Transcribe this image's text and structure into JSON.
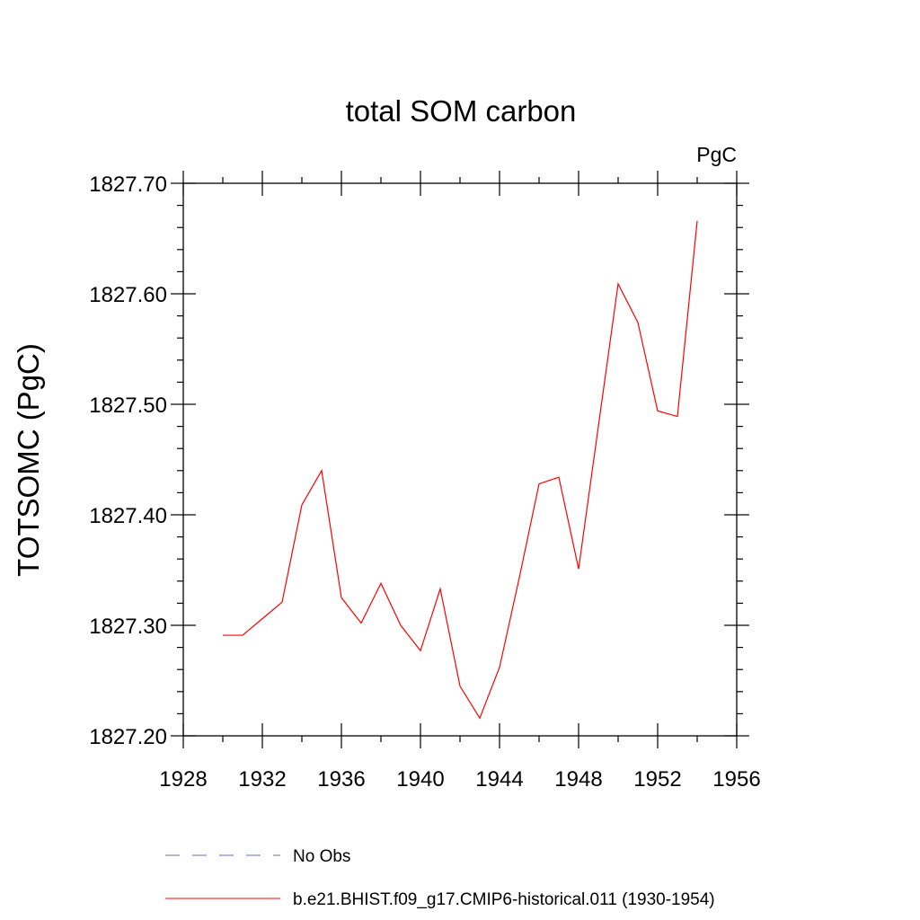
{
  "chart_data": {
    "type": "line",
    "title": "total SOM carbon",
    "units_label": "PgC",
    "ylabel": "TOTSOMC  (PgC)",
    "xlabel": "",
    "xlim": [
      1928,
      1956
    ],
    "ylim": [
      1827.2,
      1827.7
    ],
    "x_ticks": [
      1928,
      1932,
      1936,
      1940,
      1944,
      1948,
      1952,
      1956
    ],
    "x_tick_labels": [
      "1928",
      "1932",
      "1936",
      "1940",
      "1944",
      "1948",
      "1952",
      "1956"
    ],
    "y_ticks": [
      1827.2,
      1827.3,
      1827.4,
      1827.5,
      1827.6,
      1827.7
    ],
    "y_tick_labels": [
      "1827.20",
      "1827.30",
      "1827.40",
      "1827.50",
      "1827.60",
      "1827.70"
    ],
    "grid": false,
    "legend_position": "bottom",
    "series": [
      {
        "name": "b.e21.BHIST.f09_g17.CMIP6-historical.011 (1930-1954)",
        "color": "#ff0000",
        "dash": "solid",
        "x": [
          1930,
          1931,
          1932,
          1933,
          1934,
          1935,
          1936,
          1937,
          1938,
          1939,
          1940,
          1941,
          1942,
          1943,
          1944,
          1945,
          1946,
          1947,
          1948,
          1949,
          1950,
          1951,
          1952,
          1953,
          1954
        ],
        "y": [
          1827.291,
          1827.291,
          1827.306,
          1827.321,
          1827.409,
          1827.44,
          1827.325,
          1827.302,
          1827.338,
          1827.3,
          1827.277,
          1827.333,
          1827.245,
          1827.216,
          1827.262,
          1827.343,
          1827.428,
          1827.434,
          1827.351,
          1827.48,
          1827.609,
          1827.574,
          1827.494,
          1827.489,
          1827.666
        ]
      }
    ],
    "legend": [
      {
        "label": "No Obs",
        "color": "#6b6bc8",
        "dash": "dashed"
      },
      {
        "label": "b.e21.BHIST.f09_g17.CMIP6-historical.011 (1930-1954)",
        "color": "#ff0000",
        "dash": "solid"
      }
    ]
  }
}
